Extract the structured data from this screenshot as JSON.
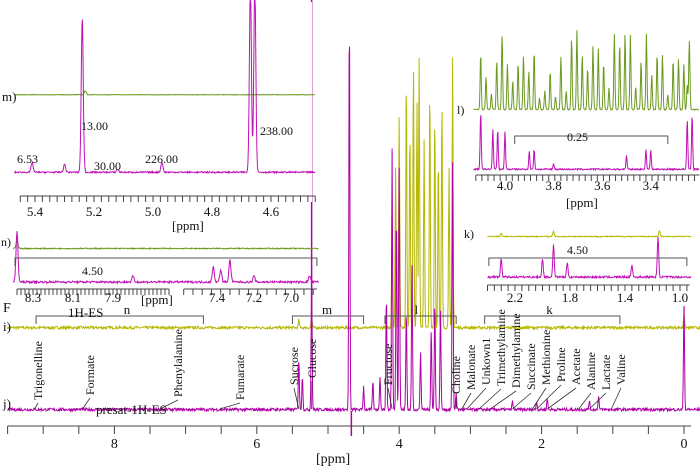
{
  "chart_data": {
    "type": "line",
    "title": "",
    "xlabel": "[ppm]",
    "xlim": [
      9.5,
      -0.2
    ],
    "x_ticks": [
      "8",
      "6",
      "4",
      "2",
      "0"
    ],
    "colors": {
      "i_trace": "#b5b800",
      "j_trace": "#b000a8",
      "inset_green": "#6b9a1e",
      "inset_magenta": "#c010b8",
      "axis": "#444444"
    },
    "traces": {
      "i": {
        "label": "i)",
        "prefix": "F",
        "name": "1H-ES",
        "peaks": [
          {
            "ppm": 5.41,
            "h": 3
          },
          {
            "ppm": 5.23,
            "h": 4
          },
          {
            "ppm": 4.1,
            "h": 30
          },
          {
            "ppm": 4.05,
            "h": 60
          },
          {
            "ppm": 4.0,
            "h": 80
          },
          {
            "ppm": 3.9,
            "h": 95
          },
          {
            "ppm": 3.85,
            "h": 75
          },
          {
            "ppm": 3.8,
            "h": 100
          },
          {
            "ppm": 3.75,
            "h": 85
          },
          {
            "ppm": 3.72,
            "h": 100
          },
          {
            "ppm": 3.65,
            "h": 70
          },
          {
            "ppm": 3.57,
            "h": 90
          },
          {
            "ppm": 3.5,
            "h": 80
          },
          {
            "ppm": 3.45,
            "h": 65
          },
          {
            "ppm": 3.4,
            "h": 85
          },
          {
            "ppm": 3.3,
            "h": 60
          },
          {
            "ppm": 3.25,
            "h": 100
          },
          {
            "ppm": 0.0,
            "h": 5
          }
        ]
      },
      "j": {
        "label": "j)",
        "name": "presat-1H-ES",
        "peaks": [
          {
            "ppm": 5.41,
            "h": 18
          },
          {
            "ppm": 5.36,
            "h": 12
          },
          {
            "ppm": 5.23,
            "h": 45
          },
          {
            "ppm": 4.7,
            "h": 140
          },
          {
            "ppm": 4.5,
            "h": 8
          },
          {
            "ppm": 4.37,
            "h": 10
          },
          {
            "ppm": 4.27,
            "h": 12
          },
          {
            "ppm": 4.18,
            "h": 40
          },
          {
            "ppm": 4.1,
            "h": 90
          },
          {
            "ppm": 4.04,
            "h": 70
          },
          {
            "ppm": 4.0,
            "h": 85
          },
          {
            "ppm": 3.9,
            "h": 35
          },
          {
            "ppm": 3.82,
            "h": 50
          },
          {
            "ppm": 3.7,
            "h": 20
          },
          {
            "ppm": 3.55,
            "h": 28
          },
          {
            "ppm": 3.5,
            "h": 38
          },
          {
            "ppm": 3.42,
            "h": 35
          },
          {
            "ppm": 3.25,
            "h": 85
          },
          {
            "ppm": 3.2,
            "h": 6
          },
          {
            "ppm": 2.41,
            "h": 3
          },
          {
            "ppm": 2.07,
            "h": 3
          },
          {
            "ppm": 1.92,
            "h": 4
          },
          {
            "ppm": 1.33,
            "h": 3
          },
          {
            "ppm": 1.2,
            "h": 5
          },
          {
            "ppm": 0.0,
            "h": 38
          }
        ]
      }
    },
    "brackets": [
      {
        "label": "n",
        "from": 9.1,
        "to": 6.75
      },
      {
        "label": "m",
        "from": 5.5,
        "to": 4.5
      },
      {
        "label": "l",
        "from": 4.2,
        "to": 3.2
      },
      {
        "label": "k",
        "from": 2.8,
        "to": 0.9
      }
    ],
    "annotations": [
      {
        "label": "Trigonelline",
        "ppm": 9.12
      },
      {
        "label": "Formate",
        "ppm": 8.45
      },
      {
        "label": "Phenylalanine",
        "ppm": 7.36
      },
      {
        "label": "Fumarate",
        "ppm": 6.52
      },
      {
        "label": "Sucrose",
        "ppm": 5.41
      },
      {
        "label": "Glucose",
        "ppm": 5.23
      },
      {
        "label": "Fructose",
        "ppm": 4.1
      },
      {
        "label": "Choline",
        "ppm": 3.2
      },
      {
        "label": "Malonate",
        "ppm": 3.12
      },
      {
        "label": "Unkown1",
        "ppm": 3.05
      },
      {
        "label": "Trimethylamine",
        "ppm": 2.88
      },
      {
        "label": "Dimethylamine",
        "ppm": 2.72
      },
      {
        "label": "Succinate",
        "ppm": 2.41
      },
      {
        "label": "Methionine",
        "ppm": 2.13
      },
      {
        "label": "Proline",
        "ppm": 2.07
      },
      {
        "label": "Acetate",
        "ppm": 1.92
      },
      {
        "label": "Alanine",
        "ppm": 1.48
      },
      {
        "label": "Lactate",
        "ppm": 1.33
      },
      {
        "label": "Valine",
        "ppm": 1.02
      }
    ],
    "insets": {
      "m": {
        "label": "m)",
        "xlabel": "[ppm]",
        "xlim": [
          5.47,
          4.45
        ],
        "ticks": [
          "5.4",
          "5.2",
          "5.0",
          "4.8",
          "4.6"
        ],
        "scale_labels": [
          "6.53",
          "13.00",
          "30.00",
          "226.00",
          "238.00"
        ]
      },
      "n": {
        "label": "n)",
        "xlabel": "[ppm]",
        "ticks": [
          "8.3",
          "8.1",
          "7.9",
          "7.4",
          "7.2",
          "7.0"
        ],
        "scale_label": "4.50"
      },
      "l": {
        "label": "l)",
        "xlabel": "[ppm]",
        "xlim": [
          4.13,
          3.2
        ],
        "ticks": [
          "4.0",
          "3.8",
          "3.6",
          "3.4"
        ],
        "scale_label": "0.25"
      },
      "k": {
        "label": "k)",
        "xlim": [
          2.4,
          0.95
        ],
        "ticks": [
          "2.2",
          "1.8",
          "1.4",
          "1.0"
        ],
        "scale_label": "4.50"
      }
    }
  }
}
